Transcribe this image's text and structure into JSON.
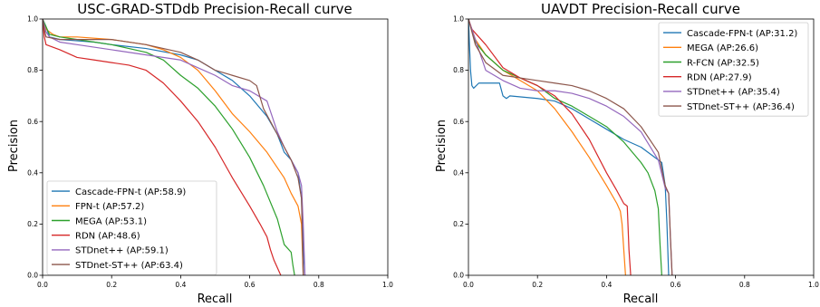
{
  "chart_data": [
    {
      "type": "line",
      "title": "USC-GRAD-STDdb Precision-Recall curve",
      "xlabel": "Recall",
      "ylabel": "Precision",
      "xlim": [
        0,
        1
      ],
      "ylim": [
        0,
        1
      ],
      "xticks": [
        "0.0",
        "0.2",
        "0.4",
        "0.6",
        "0.8",
        "1.0"
      ],
      "yticks": [
        "0.0",
        "0.2",
        "0.4",
        "0.6",
        "0.8",
        "1.0"
      ],
      "legend_position": "lower-left",
      "series": [
        {
          "name": "Cascade-FPN-t (AP:58.9)",
          "color": "#1f77b4",
          "x": [
            0.0,
            0.01,
            0.02,
            0.05,
            0.1,
            0.15,
            0.2,
            0.3,
            0.4,
            0.45,
            0.5,
            0.55,
            0.6,
            0.65,
            0.68,
            0.7,
            0.72,
            0.74,
            0.75,
            0.755,
            0.76
          ],
          "y": [
            1.0,
            0.97,
            0.93,
            0.92,
            0.915,
            0.91,
            0.9,
            0.885,
            0.86,
            0.84,
            0.8,
            0.76,
            0.7,
            0.62,
            0.55,
            0.48,
            0.45,
            0.4,
            0.3,
            0.1,
            0.0
          ]
        },
        {
          "name": "FPN-t (AP:57.2)",
          "color": "#ff7f0e",
          "x": [
            0.0,
            0.01,
            0.03,
            0.05,
            0.1,
            0.2,
            0.3,
            0.35,
            0.4,
            0.45,
            0.5,
            0.55,
            0.6,
            0.65,
            0.7,
            0.72,
            0.74,
            0.75,
            0.755
          ],
          "y": [
            1.0,
            0.96,
            0.94,
            0.93,
            0.93,
            0.92,
            0.9,
            0.88,
            0.85,
            0.8,
            0.72,
            0.63,
            0.56,
            0.48,
            0.38,
            0.32,
            0.27,
            0.2,
            0.0
          ]
        },
        {
          "name": "MEGA (AP:53.1)",
          "color": "#2ca02c",
          "x": [
            0.0,
            0.01,
            0.02,
            0.05,
            0.1,
            0.2,
            0.3,
            0.35,
            0.4,
            0.45,
            0.5,
            0.55,
            0.6,
            0.64,
            0.68,
            0.7,
            0.72,
            0.725,
            0.73
          ],
          "y": [
            1.0,
            0.97,
            0.94,
            0.93,
            0.92,
            0.9,
            0.87,
            0.84,
            0.78,
            0.73,
            0.66,
            0.57,
            0.46,
            0.35,
            0.22,
            0.12,
            0.09,
            0.04,
            0.0
          ]
        },
        {
          "name": "RDN (AP:48.6)",
          "color": "#d62728",
          "x": [
            0.0,
            0.005,
            0.01,
            0.05,
            0.1,
            0.15,
            0.2,
            0.25,
            0.3,
            0.35,
            0.4,
            0.45,
            0.5,
            0.55,
            0.6,
            0.63,
            0.65,
            0.66,
            0.67,
            0.68,
            0.69
          ],
          "y": [
            1.0,
            0.93,
            0.9,
            0.88,
            0.85,
            0.84,
            0.83,
            0.82,
            0.8,
            0.75,
            0.68,
            0.6,
            0.5,
            0.38,
            0.27,
            0.2,
            0.15,
            0.1,
            0.06,
            0.03,
            0.0
          ]
        },
        {
          "name": "STDnet++ (AP:59.1)",
          "color": "#9467bd",
          "x": [
            0.0,
            0.01,
            0.02,
            0.05,
            0.1,
            0.2,
            0.3,
            0.4,
            0.45,
            0.5,
            0.55,
            0.6,
            0.65,
            0.68,
            0.7,
            0.72,
            0.74,
            0.75,
            0.755,
            0.76
          ],
          "y": [
            1.0,
            0.95,
            0.93,
            0.91,
            0.9,
            0.88,
            0.86,
            0.84,
            0.81,
            0.78,
            0.74,
            0.72,
            0.68,
            0.56,
            0.5,
            0.45,
            0.4,
            0.35,
            0.2,
            0.0
          ]
        },
        {
          "name": "STDnet-ST++ (AP:63.4)",
          "color": "#8c564b",
          "x": [
            0.0,
            0.005,
            0.01,
            0.05,
            0.1,
            0.2,
            0.3,
            0.4,
            0.45,
            0.5,
            0.55,
            0.6,
            0.62,
            0.64,
            0.66,
            0.68,
            0.7,
            0.72,
            0.74,
            0.75,
            0.755
          ],
          "y": [
            1.0,
            0.96,
            0.93,
            0.92,
            0.92,
            0.92,
            0.9,
            0.87,
            0.84,
            0.8,
            0.78,
            0.76,
            0.74,
            0.65,
            0.6,
            0.55,
            0.5,
            0.45,
            0.38,
            0.3,
            0.0
          ]
        }
      ]
    },
    {
      "type": "line",
      "title": "UAVDT Precision-Recall curve",
      "xlabel": "Recall",
      "ylabel": "Precision",
      "xlim": [
        0,
        1
      ],
      "ylim": [
        0,
        1
      ],
      "xticks": [
        "0.0",
        "0.2",
        "0.4",
        "0.6",
        "0.8",
        "1.0"
      ],
      "yticks": [
        "0.0",
        "0.2",
        "0.4",
        "0.6",
        "0.8",
        "1.0"
      ],
      "legend_position": "top-right",
      "series": [
        {
          "name": "Cascade-FPN-t (AP:31.2)",
          "color": "#1f77b4",
          "x": [
            0.0,
            0.003,
            0.006,
            0.01,
            0.015,
            0.03,
            0.05,
            0.09,
            0.1,
            0.11,
            0.12,
            0.2,
            0.25,
            0.3,
            0.35,
            0.4,
            0.45,
            0.5,
            0.55,
            0.56,
            0.57,
            0.575,
            0.58
          ],
          "y": [
            1.0,
            0.9,
            0.8,
            0.74,
            0.73,
            0.75,
            0.75,
            0.75,
            0.7,
            0.69,
            0.7,
            0.69,
            0.68,
            0.65,
            0.61,
            0.57,
            0.53,
            0.5,
            0.45,
            0.44,
            0.35,
            0.2,
            0.0
          ]
        },
        {
          "name": "MEGA (AP:26.6)",
          "color": "#ff7f0e",
          "x": [
            0.0,
            0.02,
            0.05,
            0.1,
            0.15,
            0.2,
            0.25,
            0.3,
            0.35,
            0.4,
            0.43,
            0.44,
            0.445,
            0.45,
            0.455
          ],
          "y": [
            1.0,
            0.92,
            0.86,
            0.8,
            0.76,
            0.72,
            0.65,
            0.56,
            0.46,
            0.35,
            0.28,
            0.25,
            0.2,
            0.1,
            0.0
          ]
        },
        {
          "name": "R-FCN (AP:32.5)",
          "color": "#2ca02c",
          "x": [
            0.0,
            0.02,
            0.05,
            0.1,
            0.15,
            0.2,
            0.25,
            0.3,
            0.35,
            0.4,
            0.45,
            0.5,
            0.52,
            0.54,
            0.55,
            0.555,
            0.56
          ],
          "y": [
            1.0,
            0.91,
            0.86,
            0.8,
            0.77,
            0.74,
            0.69,
            0.66,
            0.62,
            0.58,
            0.52,
            0.44,
            0.4,
            0.33,
            0.26,
            0.12,
            0.0
          ]
        },
        {
          "name": "RDN (AP:27.9)",
          "color": "#d62728",
          "x": [
            0.0,
            0.01,
            0.05,
            0.1,
            0.15,
            0.2,
            0.25,
            0.3,
            0.35,
            0.4,
            0.43,
            0.45,
            0.46,
            0.465,
            0.47
          ],
          "y": [
            1.0,
            0.96,
            0.9,
            0.81,
            0.77,
            0.74,
            0.7,
            0.63,
            0.53,
            0.4,
            0.33,
            0.28,
            0.27,
            0.1,
            0.0
          ]
        },
        {
          "name": "STDnet++ (AP:35.4)",
          "color": "#9467bd",
          "x": [
            0.0,
            0.02,
            0.05,
            0.1,
            0.15,
            0.2,
            0.25,
            0.3,
            0.35,
            0.4,
            0.45,
            0.5,
            0.55,
            0.57,
            0.58,
            0.585,
            0.59
          ],
          "y": [
            1.0,
            0.92,
            0.8,
            0.76,
            0.73,
            0.72,
            0.72,
            0.71,
            0.69,
            0.66,
            0.62,
            0.56,
            0.45,
            0.34,
            0.32,
            0.15,
            0.0
          ]
        },
        {
          "name": "STDnet-ST++ (AP:36.4)",
          "color": "#8c564b",
          "x": [
            0.0,
            0.02,
            0.05,
            0.1,
            0.15,
            0.2,
            0.25,
            0.3,
            0.35,
            0.4,
            0.45,
            0.5,
            0.55,
            0.57,
            0.58,
            0.585,
            0.59
          ],
          "y": [
            1.0,
            0.9,
            0.83,
            0.78,
            0.77,
            0.76,
            0.75,
            0.74,
            0.72,
            0.69,
            0.65,
            0.58,
            0.48,
            0.35,
            0.32,
            0.15,
            0.0
          ]
        }
      ]
    }
  ]
}
